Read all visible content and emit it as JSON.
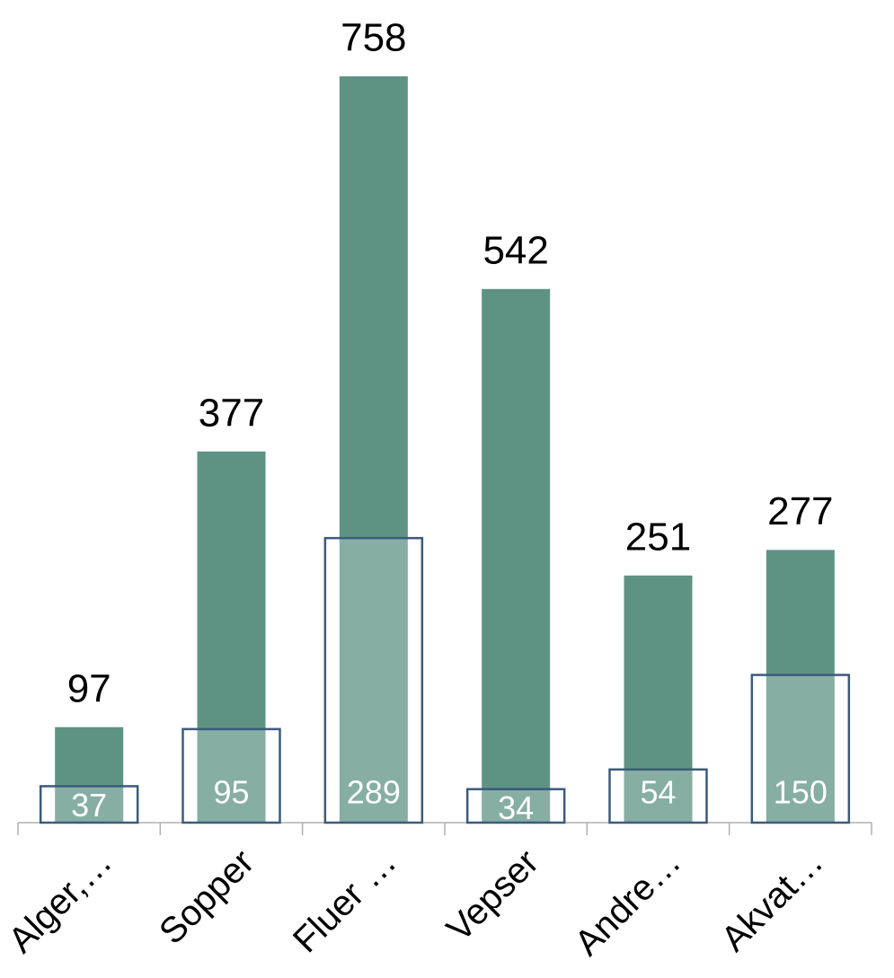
{
  "chart_data": {
    "type": "overlap-bar",
    "categories": [
      "Alger,…",
      "Sopper",
      "Fluer …",
      "Vepser",
      "Andre…",
      "Akvat…"
    ],
    "series": [
      {
        "color": "#5e9384",
        "values": [
          97,
          377,
          758,
          542,
          251,
          277
        ]
      },
      {
        "color": "#3b5b7e",
        "values": [
          37,
          95,
          289,
          34,
          54,
          150
        ]
      }
    ]
  }
}
